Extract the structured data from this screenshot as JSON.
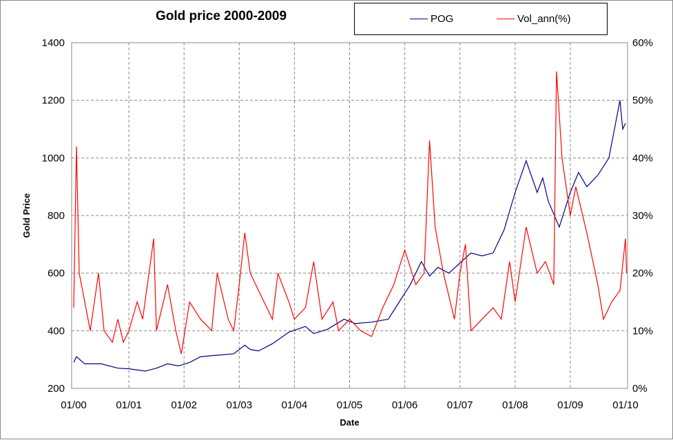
{
  "chart_data": {
    "type": "line",
    "title": "Gold price 2000-2009",
    "xlabel": "Date",
    "ylabel": "Gold Price",
    "y2label": "",
    "x_ticks": [
      "01/00",
      "01/01",
      "01/02",
      "01/03",
      "01/04",
      "01/05",
      "01/06",
      "01/07",
      "01/08",
      "01/09",
      "01/10"
    ],
    "y_ticks": [
      "200",
      "400",
      "600",
      "800",
      "1000",
      "1200",
      "1400"
    ],
    "y2_ticks": [
      "0%",
      "10%",
      "20%",
      "30%",
      "40%",
      "50%",
      "60%"
    ],
    "xlim": [
      2000,
      2010
    ],
    "ylim": [
      200,
      1400
    ],
    "y2lim": [
      0,
      60
    ],
    "grid": true,
    "legend_position": "top-right",
    "series": [
      {
        "name": "POG",
        "axis": "left",
        "color": "#000080",
        "x": [
          2000.0,
          2000.05,
          2000.2,
          2000.5,
          2000.8,
          2001.0,
          2001.3,
          2001.5,
          2001.7,
          2001.9,
          2002.1,
          2002.3,
          2002.6,
          2002.9,
          2003.1,
          2003.2,
          2003.35,
          2003.6,
          2003.9,
          2004.2,
          2004.35,
          2004.6,
          2004.9,
          2005.1,
          2005.4,
          2005.7,
          2005.9,
          2006.1,
          2006.3,
          2006.45,
          2006.6,
          2006.8,
          2007.0,
          2007.2,
          2007.4,
          2007.6,
          2007.8,
          2008.0,
          2008.2,
          2008.4,
          2008.5,
          2008.6,
          2008.8,
          2008.9,
          2009.0,
          2009.15,
          2009.3,
          2009.5,
          2009.7,
          2009.9,
          2009.95,
          2010.0
        ],
        "y": [
          290,
          310,
          285,
          285,
          270,
          268,
          260,
          270,
          285,
          278,
          290,
          310,
          315,
          320,
          350,
          335,
          330,
          355,
          395,
          415,
          390,
          405,
          440,
          425,
          430,
          440,
          500,
          560,
          640,
          590,
          620,
          600,
          635,
          670,
          660,
          670,
          750,
          880,
          990,
          880,
          930,
          850,
          760,
          820,
          880,
          950,
          900,
          940,
          1000,
          1200,
          1100,
          1120
        ]
      },
      {
        "name": "Vol_ann(%)",
        "axis": "right",
        "color": "#ff0000",
        "x": [
          2000.0,
          2000.05,
          2000.1,
          2000.2,
          2000.3,
          2000.45,
          2000.55,
          2000.7,
          2000.8,
          2000.9,
          2001.0,
          2001.15,
          2001.25,
          2001.45,
          2001.5,
          2001.7,
          2001.85,
          2001.95,
          2002.1,
          2002.3,
          2002.5,
          2002.6,
          2002.8,
          2002.9,
          2003.0,
          2003.1,
          2003.2,
          2003.4,
          2003.6,
          2003.7,
          2003.9,
          2004.0,
          2004.2,
          2004.35,
          2004.5,
          2004.7,
          2004.8,
          2005.0,
          2005.2,
          2005.4,
          2005.6,
          2005.8,
          2006.0,
          2006.2,
          2006.35,
          2006.45,
          2006.55,
          2006.7,
          2006.9,
          2007.0,
          2007.1,
          2007.2,
          2007.4,
          2007.6,
          2007.75,
          2007.9,
          2008.0,
          2008.2,
          2008.4,
          2008.55,
          2008.7,
          2008.75,
          2008.85,
          2009.0,
          2009.1,
          2009.3,
          2009.5,
          2009.6,
          2009.75,
          2009.9,
          2010.0,
          2010.02
        ],
        "y": [
          14,
          42,
          20,
          15,
          10,
          20,
          10,
          8,
          12,
          8,
          10,
          15,
          12,
          26,
          10,
          18,
          10,
          6,
          15,
          12,
          10,
          20,
          12,
          10,
          18,
          27,
          20,
          16,
          12,
          20,
          15,
          12,
          14,
          22,
          12,
          15,
          10,
          12,
          10,
          9,
          14,
          18,
          24,
          18,
          20,
          43,
          28,
          20,
          12,
          20,
          25,
          10,
          12,
          14,
          12,
          22,
          15,
          28,
          20,
          22,
          18,
          55,
          40,
          30,
          35,
          27,
          18,
          12,
          15,
          17,
          26,
          20
        ]
      }
    ]
  }
}
